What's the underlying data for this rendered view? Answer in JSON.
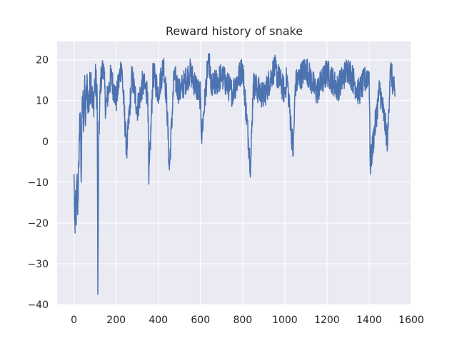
{
  "chart_data": {
    "type": "line",
    "title": "Reward history of snake",
    "xlabel": "",
    "ylabel": "",
    "xlim": [
      -80,
      1600
    ],
    "ylim": [
      -40,
      24.5
    ],
    "xticks": [
      0,
      200,
      400,
      600,
      800,
      1000,
      1200,
      1400,
      1600
    ],
    "xtick_labels": [
      "0",
      "200",
      "400",
      "600",
      "800",
      "1000",
      "1200",
      "1400",
      "1600"
    ],
    "yticks": [
      -40,
      -30,
      -20,
      -10,
      0,
      10,
      20
    ],
    "ytick_labels": [
      "−40",
      "−30",
      "−20",
      "−10",
      "0",
      "10",
      "20"
    ],
    "grid": true,
    "line_color": "#4c72b0",
    "background_color": "#eaeaf2",
    "n_points": 1524,
    "series": [
      {
        "values_sampled": [
          [
            0,
            -8
          ],
          [
            2,
            -15
          ],
          [
            5,
            -22.5
          ],
          [
            8,
            -12
          ],
          [
            10,
            -20
          ],
          [
            14,
            -9
          ],
          [
            18,
            -18
          ],
          [
            22,
            -5
          ],
          [
            26,
            0
          ],
          [
            30,
            7
          ],
          [
            34,
            -10
          ],
          [
            38,
            6
          ],
          [
            42,
            11
          ],
          [
            46,
            4
          ],
          [
            50,
            13
          ],
          [
            55,
            5
          ],
          [
            60,
            14
          ],
          [
            70,
            9
          ],
          [
            80,
            16
          ],
          [
            90,
            8
          ],
          [
            100,
            15
          ],
          [
            110,
            12
          ],
          [
            113,
            -37.5
          ],
          [
            117,
            -2
          ],
          [
            125,
            14
          ],
          [
            140,
            19
          ],
          [
            150,
            8
          ],
          [
            175,
            16
          ],
          [
            200,
            10
          ],
          [
            225,
            19
          ],
          [
            250,
            -2.5
          ],
          [
            275,
            16
          ],
          [
            300,
            8
          ],
          [
            325,
            14
          ],
          [
            350,
            12
          ],
          [
            355,
            -10.5
          ],
          [
            375,
            17
          ],
          [
            400,
            12
          ],
          [
            425,
            19
          ],
          [
            440,
            10
          ],
          [
            452,
            -7
          ],
          [
            475,
            16
          ],
          [
            500,
            12
          ],
          [
            550,
            17
          ],
          [
            600,
            11
          ],
          [
            605,
            1
          ],
          [
            640,
            21.5
          ],
          [
            650,
            13
          ],
          [
            700,
            16
          ],
          [
            750,
            12
          ],
          [
            800,
            18
          ],
          [
            838,
            -6.5
          ],
          [
            850,
            14
          ],
          [
            900,
            11
          ],
          [
            950,
            18
          ],
          [
            1000,
            12
          ],
          [
            1010,
            16
          ],
          [
            1040,
            -3
          ],
          [
            1050,
            14
          ],
          [
            1100,
            18
          ],
          [
            1150,
            12
          ],
          [
            1200,
            17
          ],
          [
            1250,
            13
          ],
          [
            1300,
            18
          ],
          [
            1350,
            12
          ],
          [
            1400,
            17
          ],
          [
            1405,
            -6
          ],
          [
            1450,
            13
          ],
          [
            1488,
            0
          ],
          [
            1500,
            18
          ],
          [
            1523,
            11
          ]
        ]
      }
    ]
  }
}
